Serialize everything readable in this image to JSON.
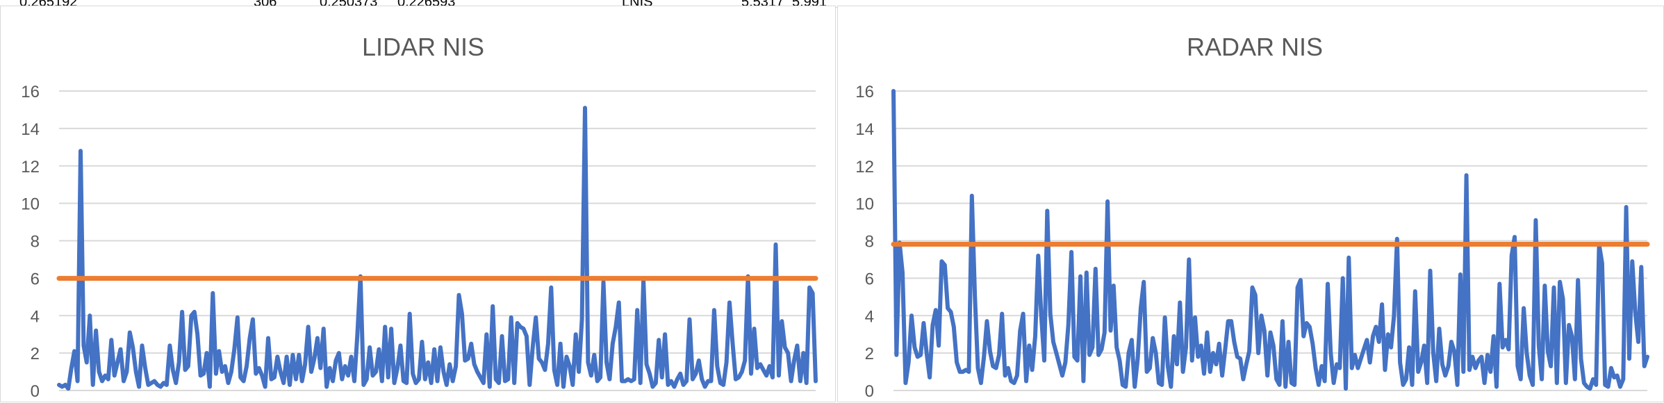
{
  "sheet_strip": {
    "cells": [
      {
        "text": "0.265192"
      },
      {
        "text": "306"
      },
      {
        "text": "0.250373"
      },
      {
        "text": "0.226593"
      },
      {
        "text": "LNIS"
      },
      {
        "text": "5.5317"
      },
      {
        "text": "5.991"
      }
    ]
  },
  "chart_data": [
    {
      "type": "line",
      "title": "LIDAR NIS",
      "xlabel": "",
      "ylabel": "",
      "ylim": [
        0,
        16
      ],
      "yticks": [
        0,
        2,
        4,
        6,
        8,
        10,
        12,
        14,
        16
      ],
      "grid": true,
      "legend": "none",
      "series": [
        {
          "color": "#4472c4",
          "values": [
            0.3,
            0.2,
            0.3,
            0.1,
            1.2,
            2.1,
            0.5,
            12.8,
            2.4,
            1.5,
            4.0,
            0.3,
            3.2,
            1.0,
            0.5,
            0.8,
            0.6,
            2.7,
            0.8,
            1.5,
            2.2,
            0.5,
            1.0,
            3.1,
            2.3,
            1.0,
            0.2,
            2.4,
            1.2,
            0.3,
            0.4,
            0.5,
            0.3,
            0.2,
            0.4,
            0.3,
            2.4,
            1.1,
            0.4,
            1.5,
            4.2,
            1.1,
            1.3,
            4.0,
            4.2,
            3.0,
            0.8,
            0.9,
            2.0,
            0.2,
            5.2,
            0.9,
            2.1,
            1.0,
            1.3,
            0.4,
            1.0,
            2.2,
            3.9,
            0.7,
            0.5,
            1.3,
            2.8,
            3.8,
            0.9,
            1.2,
            0.8,
            0.2,
            2.8,
            0.6,
            0.7,
            1.8,
            1.0,
            0.4,
            1.8,
            0.3,
            1.9,
            0.6,
            1.9,
            0.5,
            1.4,
            3.4,
            1.0,
            1.7,
            2.8,
            1.2,
            3.3,
            0.2,
            1.2,
            0.5,
            1.6,
            2.0,
            0.6,
            1.3,
            0.8,
            1.8,
            0.5,
            3.0,
            6.1,
            0.3,
            0.6,
            2.3,
            0.8,
            1.0,
            2.2,
            0.5,
            3.4,
            0.7,
            3.3,
            0.4,
            1.2,
            2.4,
            0.5,
            0.4,
            4.1,
            0.9,
            0.4,
            0.6,
            2.6,
            0.6,
            1.5,
            0.4,
            2.2,
            0.5,
            2.3,
            1.0,
            0.3,
            1.4,
            0.5,
            1.3,
            5.1,
            4.1,
            1.6,
            1.7,
            2.5,
            1.4,
            1.0,
            0.7,
            0.4,
            3.0,
            0.2,
            4.5,
            0.6,
            0.4,
            2.9,
            0.5,
            0.6,
            3.9,
            0.4,
            3.6,
            3.4,
            3.3,
            2.9,
            0.3,
            2.3,
            3.9,
            1.7,
            1.5,
            1.1,
            2.5,
            5.5,
            1.1,
            0.3,
            2.5,
            0.2,
            1.8,
            1.3,
            0.3,
            3.0,
            1.0,
            3.8,
            15.1,
            1.5,
            0.8,
            1.9,
            0.5,
            0.7,
            5.8,
            1.5,
            0.6,
            2.5,
            3.4,
            4.7,
            0.5,
            0.5,
            0.6,
            0.5,
            0.6,
            4.3,
            0.4,
            5.9,
            1.4,
            0.9,
            0.2,
            0.4,
            2.7,
            0.7,
            3.0,
            0.3,
            0.5,
            0.2,
            0.6,
            0.9,
            0.3,
            0.5,
            3.8,
            0.6,
            0.9,
            1.6,
            0.6,
            0.2,
            0.5,
            0.5,
            4.3,
            1.3,
            0.4,
            0.3,
            1.5,
            4.7,
            2.5,
            0.6,
            0.7,
            1.0,
            1.6,
            6.1,
            0.9,
            3.3,
            1.2,
            1.4,
            1.1,
            0.8,
            1.3,
            0.7,
            7.8,
            0.8,
            3.7,
            2.3,
            2.0,
            0.5,
            1.6,
            2.4,
            0.5,
            2.0,
            0.4,
            5.5,
            5.2,
            0.5
          ]
        },
        {
          "color": "#ed7d31",
          "values": [
            5.991,
            5.991
          ]
        }
      ]
    },
    {
      "type": "line",
      "title": "RADAR NIS",
      "xlabel": "",
      "ylabel": "",
      "ylim": [
        0,
        16
      ],
      "yticks": [
        0,
        2,
        4,
        6,
        8,
        10,
        12,
        14,
        16
      ],
      "grid": true,
      "legend": "none",
      "series": [
        {
          "color": "#4472c4",
          "values": [
            16.0,
            1.9,
            7.9,
            6.3,
            0.4,
            1.5,
            4.0,
            2.3,
            1.8,
            1.9,
            3.6,
            2.0,
            0.7,
            3.5,
            4.3,
            2.4,
            6.9,
            6.7,
            4.4,
            4.2,
            3.4,
            1.5,
            1.0,
            1.0,
            1.1,
            1.0,
            10.4,
            5.0,
            1.2,
            0.4,
            1.8,
            3.7,
            2.1,
            1.3,
            1.2,
            1.9,
            4.1,
            0.8,
            1.2,
            0.5,
            0.4,
            0.8,
            3.2,
            4.1,
            0.5,
            2.4,
            1.1,
            2.9,
            7.2,
            4.0,
            1.6,
            9.6,
            4.1,
            2.6,
            2.0,
            1.4,
            0.8,
            1.5,
            3.5,
            7.4,
            1.8,
            1.6,
            6.1,
            0.5,
            6.3,
            1.9,
            2.3,
            6.5,
            1.9,
            2.2,
            3.1,
            10.1,
            3.2,
            5.6,
            2.3,
            1.6,
            0.3,
            0.2,
            2.0,
            2.7,
            0.2,
            1.7,
            4.4,
            5.8,
            1.0,
            1.2,
            2.8,
            2.0,
            0.4,
            0.3,
            3.9,
            1.3,
            0.2,
            2.9,
            1.4,
            4.7,
            1.0,
            2.3,
            7.0,
            1.6,
            3.9,
            1.8,
            2.4,
            0.9,
            3.1,
            1.0,
            2.0,
            1.4,
            2.5,
            0.8,
            2.2,
            3.7,
            3.7,
            2.6,
            1.8,
            1.7,
            0.6,
            1.4,
            2.1,
            5.5,
            5.1,
            2.0,
            4.0,
            3.2,
            0.8,
            3.1,
            2.4,
            0.6,
            0.3,
            3.7,
            0.2,
            2.6,
            0.4,
            0.3,
            5.5,
            5.9,
            2.9,
            3.6,
            3.4,
            2.5,
            1.2,
            0.3,
            1.3,
            0.5,
            5.7,
            2.0,
            0.4,
            1.4,
            1.2,
            6.0,
            0.1,
            7.1,
            1.2,
            1.9,
            1.2,
            1.7,
            2.2,
            2.7,
            1.5,
            2.9,
            3.4,
            2.6,
            4.6,
            1.1,
            3.0,
            2.3,
            4.0,
            8.1,
            1.5,
            0.3,
            0.6,
            2.3,
            0.3,
            5.3,
            1.0,
            1.5,
            2.4,
            0.4,
            6.4,
            2.0,
            0.5,
            3.3,
            1.4,
            0.8,
            1.3,
            2.6,
            2.1,
            0.3,
            6.2,
            1.0,
            11.5,
            1.1,
            1.8,
            1.2,
            1.6,
            1.8,
            0.4,
            1.9,
            1.0,
            2.9,
            0.2,
            5.7,
            2.3,
            2.7,
            2.2,
            7.2,
            8.2,
            1.3,
            0.6,
            4.4,
            2.0,
            0.8,
            0.3,
            9.1,
            2.4,
            0.6,
            5.6,
            2.1,
            1.3,
            5.5,
            0.4,
            5.8,
            4.9,
            0.4,
            3.5,
            2.9,
            0.6,
            5.9,
            1.7,
            0.4,
            0.2,
            0.1,
            0.6,
            0.3,
            7.8,
            6.8,
            0.3,
            0.2,
            1.2,
            0.7,
            0.8,
            0.2,
            0.6,
            9.8,
            1.7,
            6.9,
            4.2,
            2.6,
            6.6,
            1.3,
            1.8
          ]
        },
        {
          "color": "#ed7d31",
          "values": [
            7.815,
            7.815
          ]
        }
      ]
    }
  ]
}
